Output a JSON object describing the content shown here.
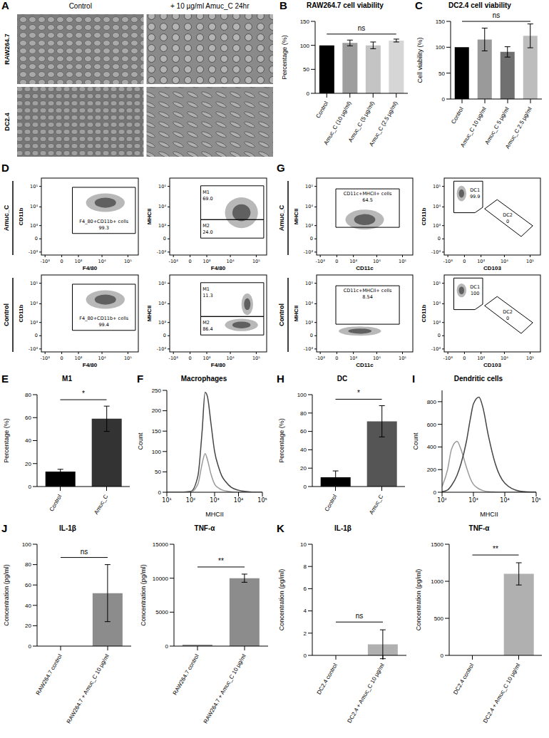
{
  "chart_data": [
    {
      "panel": "A",
      "type": "image_grid",
      "columns": [
        "Control",
        "+ 10 µg/ml Amuc_C 24hr"
      ],
      "rows": [
        "RAW264.7",
        "DC2.4"
      ]
    },
    {
      "panel": "B",
      "type": "bar",
      "title": "RAW264.7 cell viability",
      "y_label": "Percentage (%)",
      "categories": [
        "Control",
        "Amuc_C (10 µg/ml)",
        "Amuc_C (5 µg/ml)",
        "Amuc_C (2.5 µg/ml)"
      ],
      "values": [
        100,
        105,
        100,
        110
      ],
      "errors": [
        0,
        6,
        7,
        3
      ],
      "colors": [
        "#000000",
        "#9e9e9e",
        "#c4c4c4",
        "#d6d6d6"
      ],
      "ylim": [
        0,
        150
      ],
      "yticks": [
        0,
        50,
        100,
        150
      ],
      "annotation": "ns"
    },
    {
      "panel": "C",
      "type": "bar",
      "title": "DC2.4 cell viability",
      "y_label": "Cell viability (%)",
      "categories": [
        "Control",
        "Amuc_C 10 µg/ml",
        "Amuc_C 5 µg/ml",
        "Amuc_C 2.5 µg/ml"
      ],
      "values": [
        100,
        115,
        91,
        122
      ],
      "errors": [
        0,
        22,
        10,
        23
      ],
      "colors": [
        "#000000",
        "#9a9a9a",
        "#707070",
        "#bdbdbd"
      ],
      "ylim": [
        0,
        150
      ],
      "yticks": [
        0,
        50,
        100,
        150
      ],
      "annotation": "ns"
    },
    {
      "panel": "D",
      "type": "flow",
      "rows": [
        "Amuc_C",
        "Control"
      ],
      "xlim": [
        -1500,
        250000
      ],
      "ylim": [
        -1500,
        250000
      ],
      "xticks": [
        {
          "value": -1000,
          "label": "-10³"
        },
        0,
        {
          "value": 1000,
          "label": "10³"
        },
        {
          "value": 10000,
          "label": "10⁴"
        },
        {
          "value": 100000,
          "label": "10⁵"
        }
      ],
      "yticks": [
        {
          "value": -1000,
          "label": "-10³"
        },
        0,
        {
          "value": 1000,
          "label": "10³"
        },
        {
          "value": 10000,
          "label": "10⁴"
        },
        {
          "value": 100000,
          "label": "10⁵"
        }
      ],
      "plots": [
        [
          {
            "x_label": "F4/80",
            "y_label": "CD11b",
            "gates": [
              {
                "label": "F4_80+CD11b+ cells",
                "value": 99.3
              }
            ]
          },
          {
            "x_label": "F4/80",
            "y_label": "MHCII",
            "gates": [
              {
                "label": "M1",
                "value": 69,
                "value_label": "69.0"
              },
              {
                "label": "M2",
                "value": 24,
                "value_label": "24.0"
              }
            ]
          }
        ],
        [
          {
            "x_label": "F4/80",
            "y_label": "CD11b",
            "gates": [
              {
                "label": "F4_80+CD11b+ cells",
                "value": 99.4
              }
            ]
          },
          {
            "x_label": "F4/80",
            "y_label": "MHCII",
            "gates": [
              {
                "label": "M1",
                "value": 11.3
              },
              {
                "label": "M2",
                "value": 86.4
              }
            ]
          }
        ]
      ]
    },
    {
      "panel": "G",
      "type": "flow",
      "rows": [
        "Amuc_C",
        "Control"
      ],
      "xlim": [
        -1500,
        250000
      ],
      "ylim": [
        -1500,
        250000
      ],
      "xticks": [
        {
          "value": -1000,
          "label": "-10³"
        },
        0,
        {
          "value": 1000,
          "label": "10³"
        },
        {
          "value": 10000,
          "label": "10⁴"
        },
        {
          "value": 100000,
          "label": "10⁵"
        }
      ],
      "yticks": [
        {
          "value": -1000,
          "label": "-10³"
        },
        0,
        {
          "value": 1000,
          "label": "10³"
        },
        {
          "value": 10000,
          "label": "10⁴"
        },
        {
          "value": 100000,
          "label": "10⁵"
        }
      ],
      "plots": [
        [
          {
            "x_label": "CD11c",
            "y_label": "MHCII",
            "gates": [
              {
                "label": "CD11c+MHCII+ cells",
                "value": 64.5
              }
            ]
          },
          {
            "x_label": "CD103",
            "y_label": "CD11b",
            "gates": [
              {
                "label": "DC1",
                "value": 99.9
              },
              {
                "label": "DC2",
                "value": 0
              }
            ]
          }
        ],
        [
          {
            "x_label": "CD11c",
            "y_label": "MHCII",
            "gates": [
              {
                "label": "CD11c+MHCII+ cells",
                "value": 8.54
              }
            ]
          },
          {
            "x_label": "CD103",
            "y_label": "CD11b",
            "gates": [
              {
                "label": "DC1",
                "value": 100
              },
              {
                "label": "DC2",
                "value": 0
              }
            ]
          }
        ]
      ]
    },
    {
      "panel": "E",
      "type": "bar",
      "title": "M1",
      "y_label": "Percentage (%)",
      "categories": [
        "Control",
        "Amuc_C"
      ],
      "values": [
        13,
        59
      ],
      "errors": [
        2,
        11
      ],
      "colors": [
        "#000000",
        "#333333"
      ],
      "ylim": [
        0,
        80
      ],
      "yticks": [
        0,
        20,
        40,
        60,
        80
      ],
      "annotation": "*"
    },
    {
      "panel": "F",
      "type": "line",
      "title": "Macrophages",
      "x_label": "MHCII",
      "y_label": "Count",
      "log": "x",
      "x": [
        10,
        30,
        100,
        200,
        300,
        400,
        500,
        700,
        1000,
        1500,
        2000,
        3000,
        5000,
        10000,
        30000,
        100000
      ],
      "series": [
        {
          "color": "#444444",
          "values": [
            0,
            0,
            2,
            40,
            150,
            245,
            235,
            170,
            100,
            60,
            40,
            25,
            12,
            5,
            1,
            0
          ]
        },
        {
          "color": "#9a9a9a",
          "values": [
            0,
            0,
            1,
            20,
            70,
            95,
            80,
            45,
            20,
            10,
            6,
            3,
            1,
            0,
            0,
            0
          ]
        }
      ],
      "xlim": [
        10,
        100000
      ],
      "xticks": [
        {
          "value": 10,
          "label": "10¹"
        },
        {
          "value": 100,
          "label": "10²"
        },
        {
          "value": 1000,
          "label": "10³"
        },
        {
          "value": 10000,
          "label": "10⁴"
        },
        {
          "value": 100000,
          "label": "10⁵"
        }
      ],
      "ylim": [
        0,
        250
      ],
      "yticks": [
        0,
        50,
        100,
        150,
        200,
        250
      ]
    },
    {
      "panel": "H",
      "type": "bar",
      "title": "DC",
      "y_label": "Percentage (%)",
      "categories": [
        "Control",
        "Amuc_C"
      ],
      "values": [
        10,
        71
      ],
      "errors": [
        7,
        17
      ],
      "colors": [
        "#000000",
        "#555555"
      ],
      "ylim": [
        0,
        100
      ],
      "yticks": [
        0,
        20,
        40,
        60,
        80,
        100
      ],
      "annotation": "*"
    },
    {
      "panel": "I",
      "type": "line",
      "title": "Dendritic cells",
      "x_label": "MHCII",
      "y_label": "Count",
      "log": "x",
      "x": [
        100,
        150,
        200,
        300,
        400,
        600,
        800,
        1000,
        1500,
        2000,
        3000,
        5000,
        10000,
        30000,
        100000
      ],
      "series": [
        {
          "color": "#9a9a9a",
          "values": [
            50,
            200,
            380,
            450,
            380,
            220,
            120,
            70,
            30,
            15,
            5,
            2,
            0,
            0,
            0
          ]
        },
        {
          "color": "#444444",
          "values": [
            5,
            20,
            60,
            150,
            250,
            450,
            650,
            780,
            840,
            750,
            500,
            250,
            80,
            10,
            0
          ]
        }
      ],
      "xlim": [
        100,
        100000
      ],
      "xticks": [
        {
          "value": 100,
          "label": "10²"
        },
        {
          "value": 1000,
          "label": "10³"
        },
        {
          "value": 10000,
          "label": "10⁴"
        },
        {
          "value": 100000,
          "label": "10⁵"
        }
      ],
      "ylim": [
        0,
        900
      ],
      "yticks": [
        0,
        200,
        400,
        600,
        800
      ]
    },
    {
      "panel": "J",
      "type": "bar",
      "title": "IL-1β",
      "y_label": "Concentration (pg/ml)",
      "categories": [
        "RAW264.7 control",
        "RAW264.7 + Amuc_C 10 µg/ml"
      ],
      "values": [
        0,
        52
      ],
      "errors": [
        0,
        28
      ],
      "color": "#8c8c8c",
      "ylim": [
        0,
        100
      ],
      "yticks": [
        0,
        20,
        40,
        60,
        80,
        100
      ],
      "annotation": "ns"
    },
    {
      "type": "bar",
      "title": "TNF-α",
      "y_label": "Concentration (pg/ml)",
      "categories": [
        "RAW264.7 control",
        "RAW264.7 + Amuc_C 10 µg/ml"
      ],
      "values": [
        200,
        10000
      ],
      "errors": [
        0,
        600
      ],
      "color": "#8c8c8c",
      "ylim": [
        0,
        15000
      ],
      "yticks": [
        0,
        5000,
        10000,
        15000
      ],
      "annotation": "**"
    },
    {
      "panel": "K",
      "type": "bar",
      "title": "IL-1β",
      "y_label": "Concentration (pg/ml)",
      "categories": [
        "DC2.4 control",
        "DC2.4 + Amuc_C 10 µg/ml"
      ],
      "values": [
        0,
        1
      ],
      "errors": [
        0,
        1.3
      ],
      "color": "#b0b0b0",
      "ylim": [
        0,
        10
      ],
      "yticks": [
        0,
        2,
        4,
        6,
        8,
        10
      ],
      "annotation": "ns"
    },
    {
      "type": "bar",
      "title": "TNF-α",
      "y_label": "Concentration (pg/ml)",
      "categories": [
        "DC2.4 control",
        "DC2.4 + Amuc_C 10 µg/ml"
      ],
      "values": [
        0,
        1100
      ],
      "errors": [
        0,
        150
      ],
      "color": "#b0b0b0",
      "ylim": [
        0,
        1500
      ],
      "yticks": [
        0,
        500,
        1000,
        1500
      ],
      "annotation": "**"
    }
  ]
}
